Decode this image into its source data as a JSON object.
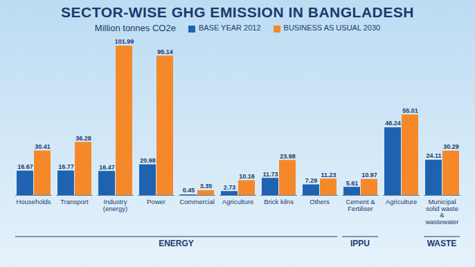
{
  "chart_data": {
    "type": "bar",
    "title": "SECTOR-WISE GHG EMISSION IN BANGLADESH",
    "subtitle": "Million tonnes CO2e",
    "categories": [
      "Households",
      "Transport",
      "Industry (energy)",
      "Power",
      "Commercial",
      "Agriculture",
      "Brick kilns",
      "Others",
      "Cement & Fertiliser",
      "Agriculture",
      "Municipal solid waste & wastewater"
    ],
    "groups": [
      "ENERGY",
      "ENERGY",
      "ENERGY",
      "ENERGY",
      "ENERGY",
      "ENERGY",
      "ENERGY",
      "ENERGY",
      "IPPU",
      null,
      "WASTE"
    ],
    "series": [
      {
        "name": "BASE YEAR 2012",
        "color": "#1f63b0",
        "values": [
          16.67,
          16.77,
          16.47,
          20.98,
          0.45,
          2.73,
          11.73,
          7.29,
          5.61,
          46.24,
          24.11
        ]
      },
      {
        "name": "BUSINESS AS USUAL 2030",
        "color": "#f5892a",
        "values": [
          30.41,
          36.28,
          101.99,
          95.14,
          3.35,
          10.16,
          23.98,
          11.23,
          10.97,
          55.01,
          30.29
        ]
      }
    ],
    "data_labels": true,
    "tick_labels": false,
    "legend": "top"
  }
}
